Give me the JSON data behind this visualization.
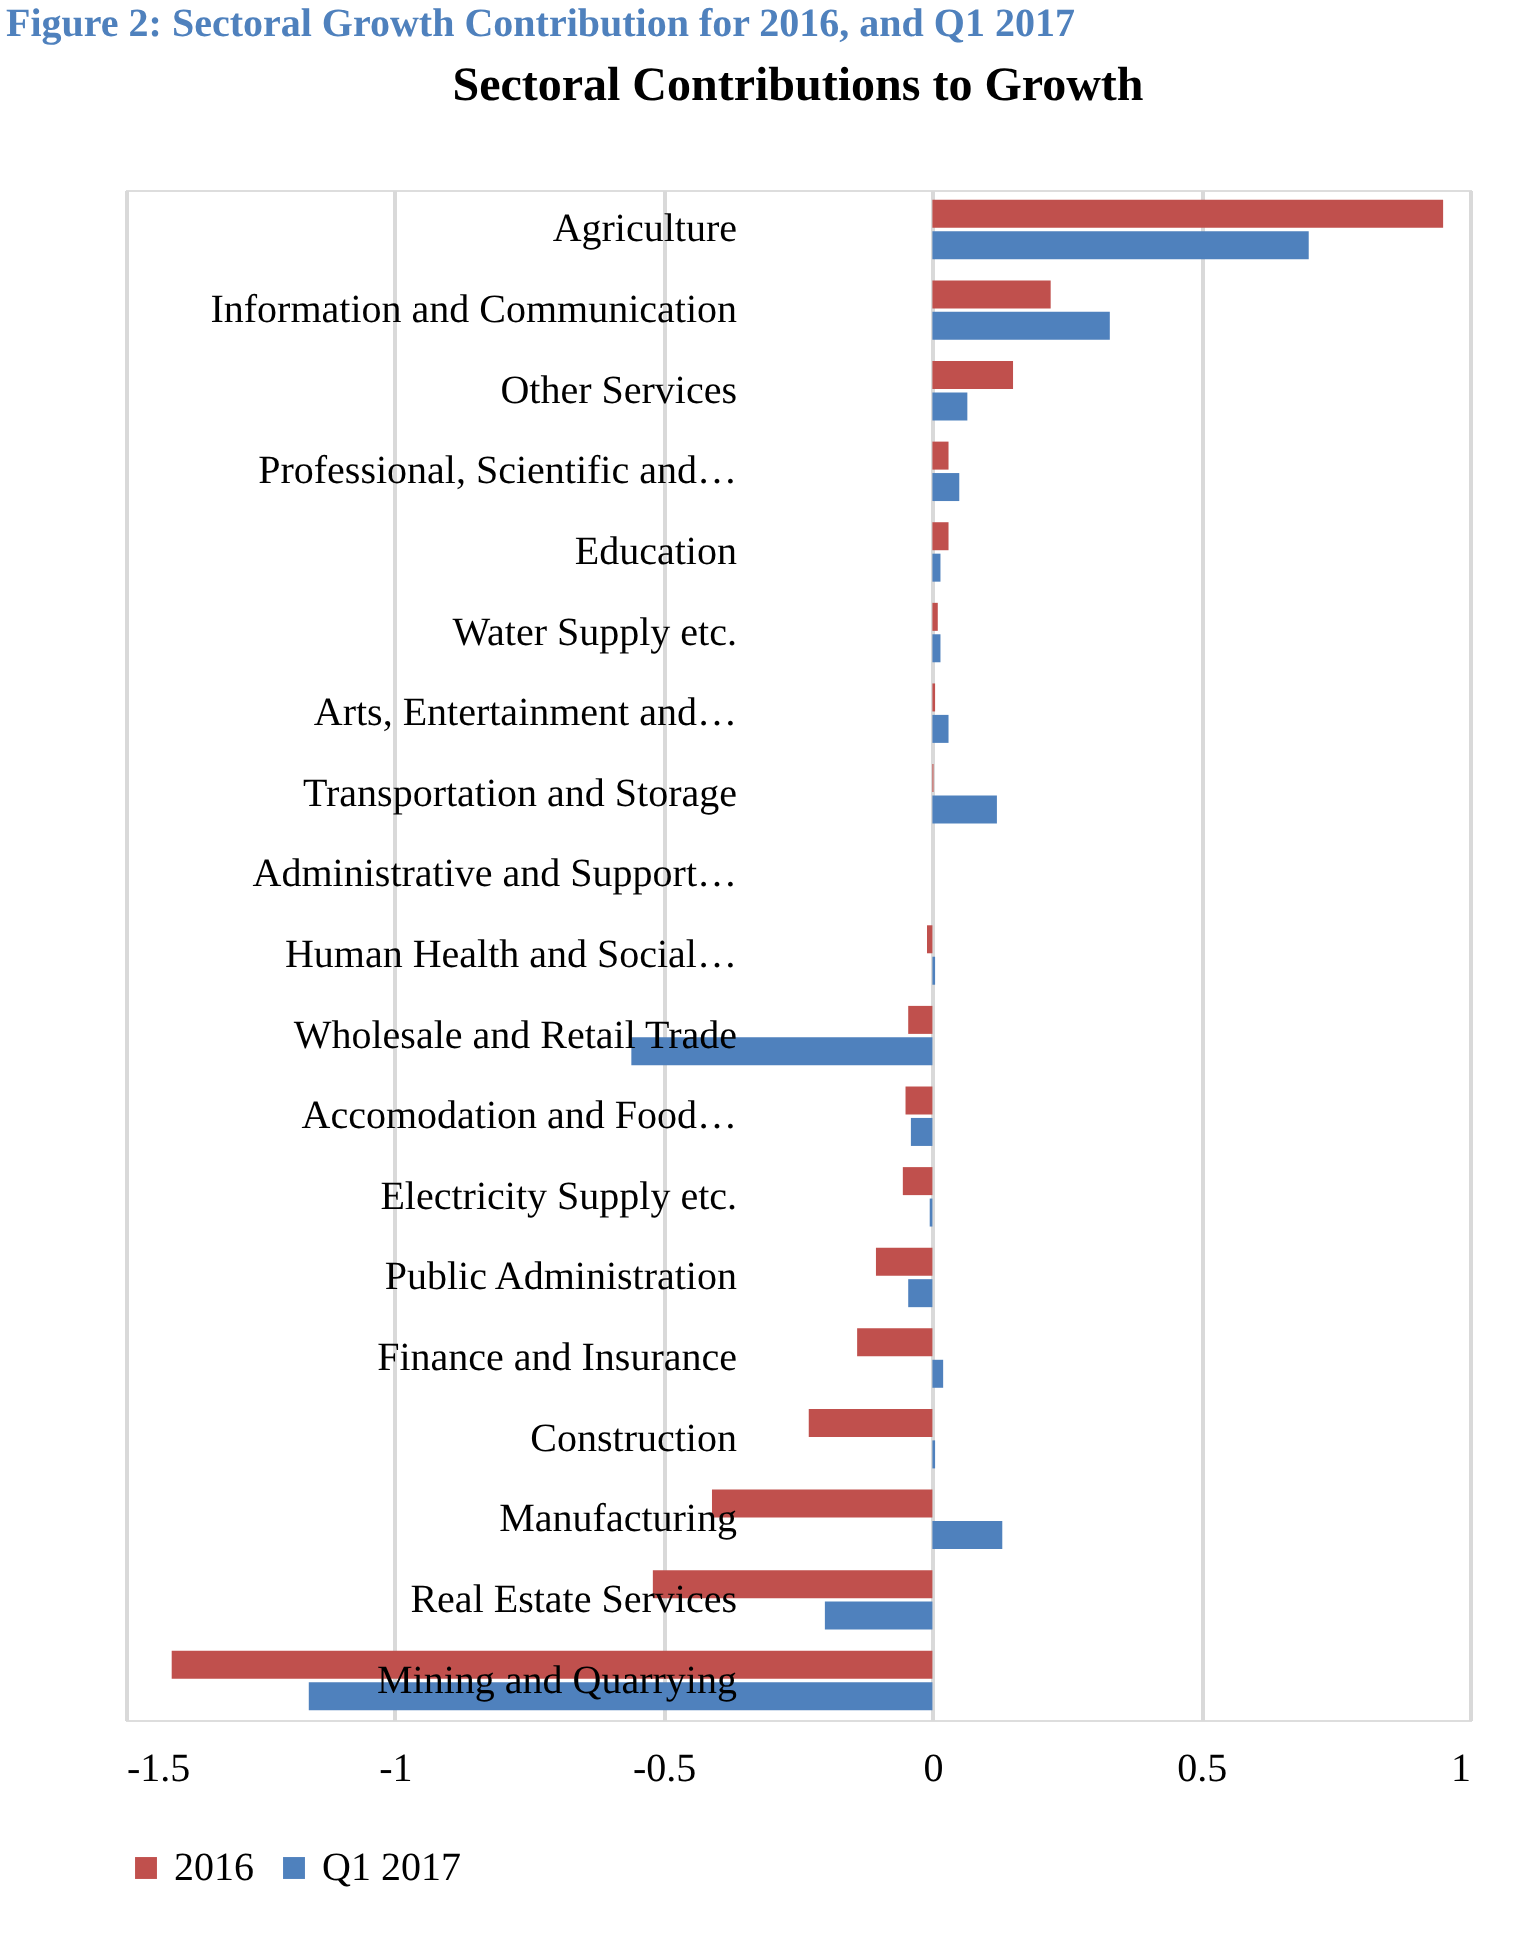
{
  "chart_data": {
    "type": "bar",
    "orientation": "horizontal",
    "title": "Sectoral Contributions to Growth",
    "annotations": [
      "Figure 2: Sectoral Growth Contribution for 2016, and Q1 2017"
    ],
    "categories": [
      "Agriculture",
      "Information and Communication",
      "Other Services",
      "Professional, Scientific and…",
      "Education",
      "Water Supply etc.",
      "Arts, Entertainment and…",
      "Transportation and Storage",
      "Administrative and Support…",
      "Human Health and Social…",
      "Wholesale and Retail Trade",
      "Accomodation and Food…",
      "Electricity Supply etc.",
      "Public Administration",
      "Finance and Insurance",
      "Construction",
      "Manufacturing",
      "Real Estate Services",
      "Mining and Quarrying"
    ],
    "series": [
      {
        "name": "2016",
        "color": "#c0504d",
        "values": [
          0.95,
          0.22,
          0.15,
          0.03,
          0.03,
          0.01,
          0.005,
          0.002,
          0,
          -0.01,
          -0.045,
          -0.05,
          -0.055,
          -0.105,
          -0.14,
          -0.23,
          -0.41,
          -0.52,
          -1.415
        ]
      },
      {
        "name": "Q1 2017",
        "color": "#4f81bd",
        "values": [
          0.7,
          0.33,
          0.065,
          0.05,
          0.015,
          0.015,
          0.03,
          0.12,
          0,
          0.005,
          -0.56,
          -0.04,
          -0.005,
          -0.045,
          0.02,
          0.005,
          0.13,
          -0.2,
          -1.16
        ]
      }
    ],
    "xlim": [
      -1.5,
      1
    ],
    "xticks": [
      -1.5,
      -1,
      -0.5,
      0,
      0.5,
      1
    ],
    "grid": "x",
    "legend": "bottom"
  }
}
